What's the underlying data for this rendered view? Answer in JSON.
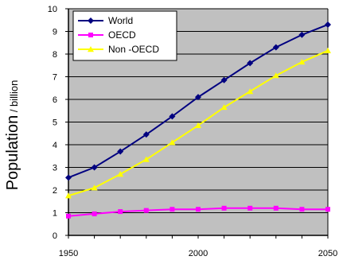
{
  "chart_data": {
    "type": "line",
    "title": "",
    "xlabel": "",
    "ylabel": "Population",
    "ylabel_unit": " / billion",
    "x": [
      1950,
      1960,
      1970,
      1980,
      1990,
      2000,
      2010,
      2020,
      2030,
      2040,
      2050
    ],
    "xlim": [
      1950,
      2050
    ],
    "ylim": [
      0,
      10
    ],
    "x_tick_labels": [
      "1950",
      "2000",
      "2050"
    ],
    "x_tick_values": [
      1950,
      2000,
      2050
    ],
    "y_tick_labels": [
      "0",
      "1",
      "2",
      "3",
      "4",
      "5",
      "6",
      "7",
      "8",
      "9",
      "10"
    ],
    "grid": "horizontal",
    "legend_position": "top-left",
    "series": [
      {
        "name": "World",
        "color": "#000080",
        "marker": "diamond",
        "values": [
          2.55,
          3.0,
          3.7,
          4.45,
          5.25,
          6.1,
          6.85,
          7.6,
          8.3,
          8.85,
          9.3
        ]
      },
      {
        "name": "OECD",
        "color": "#ff00ff",
        "marker": "square",
        "values": [
          0.85,
          0.95,
          1.05,
          1.1,
          1.15,
          1.15,
          1.2,
          1.2,
          1.2,
          1.15,
          1.15
        ]
      },
      {
        "name": "Non -OECD",
        "color": "#ffff00",
        "marker": "triangle",
        "values": [
          1.75,
          2.1,
          2.7,
          3.35,
          4.1,
          4.85,
          5.65,
          6.35,
          7.05,
          7.65,
          8.15
        ]
      }
    ],
    "plot_background": "#c0c0c0"
  }
}
